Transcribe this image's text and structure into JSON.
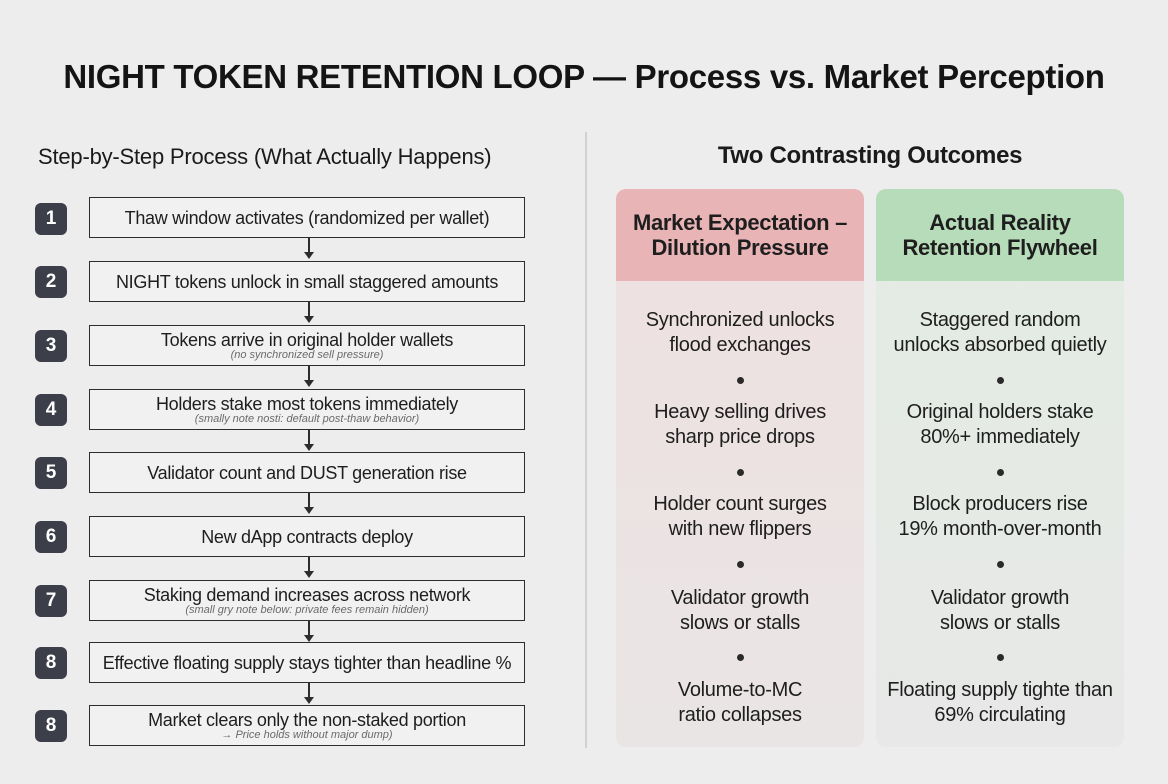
{
  "title": "NIGHT TOKEN RETENTION LOOP — Process vs. Market Perception",
  "left_heading": "Step-by-Step Process (What Actually Happens)",
  "right_heading": "Two Contrasting Outcomes",
  "steps": [
    {
      "num": "1",
      "text": "Thaw window activates (randomized per wallet)",
      "note": ""
    },
    {
      "num": "2",
      "text": "NIGHT tokens unlock in small staggered amounts",
      "note": ""
    },
    {
      "num": "3",
      "text": "Tokens arrive in original holder wallets",
      "note": "(no synchronized sell pressure)"
    },
    {
      "num": "4",
      "text": "Holders stake most tokens immediately",
      "note": "(smally note nosti: default post-thaw behavior)"
    },
    {
      "num": "5",
      "text": "Validator count and DUST generation rise",
      "note": ""
    },
    {
      "num": "6",
      "text": "New dApp contracts deploy",
      "note": ""
    },
    {
      "num": "7",
      "text": "Staking demand increases across network",
      "note": "(small gry note below: private fees remain hidden)"
    },
    {
      "num": "8",
      "text": "Effective floating supply stays tighter than headline %",
      "note": ""
    },
    {
      "num": "8",
      "text": "Market clears only the non-staked portion",
      "note": "→ Price holds without major dump)"
    }
  ],
  "market": {
    "header_line1": "Market Expectation –",
    "header_line2": "Dilution Pressure",
    "items": [
      {
        "line1": "Synchronized unlocks",
        "line2": "flood exchanges"
      },
      {
        "line1": "Heavy selling drives",
        "line2": "sharp price drops"
      },
      {
        "line1": "Holder count surges",
        "line2": "with new flippers"
      },
      {
        "line1": "Validator growth",
        "line2": "slows or stalls"
      },
      {
        "line1": "Volume-to-MC",
        "line2": "ratio collapses"
      }
    ]
  },
  "reality": {
    "header_line1": "Actual Reality",
    "header_line2": "Retention Flywheel",
    "items": [
      {
        "line1": "Staggered random",
        "line2": "unlocks absorbed quietly"
      },
      {
        "line1": "Original holders stake",
        "line2": "80%+ immediately"
      },
      {
        "line1": "Block producers rise",
        "line2": "19% month-over-month"
      },
      {
        "line1": "Validator growth",
        "line2": "slows or stalls"
      },
      {
        "line1": "Floating supply tighte than",
        "line2": "69% circulating"
      }
    ]
  },
  "colors": {
    "badge": "#3c3e4a",
    "market_header": "#e8b4b6",
    "reality_header": "#b7dcb9",
    "background": "#ededed"
  }
}
